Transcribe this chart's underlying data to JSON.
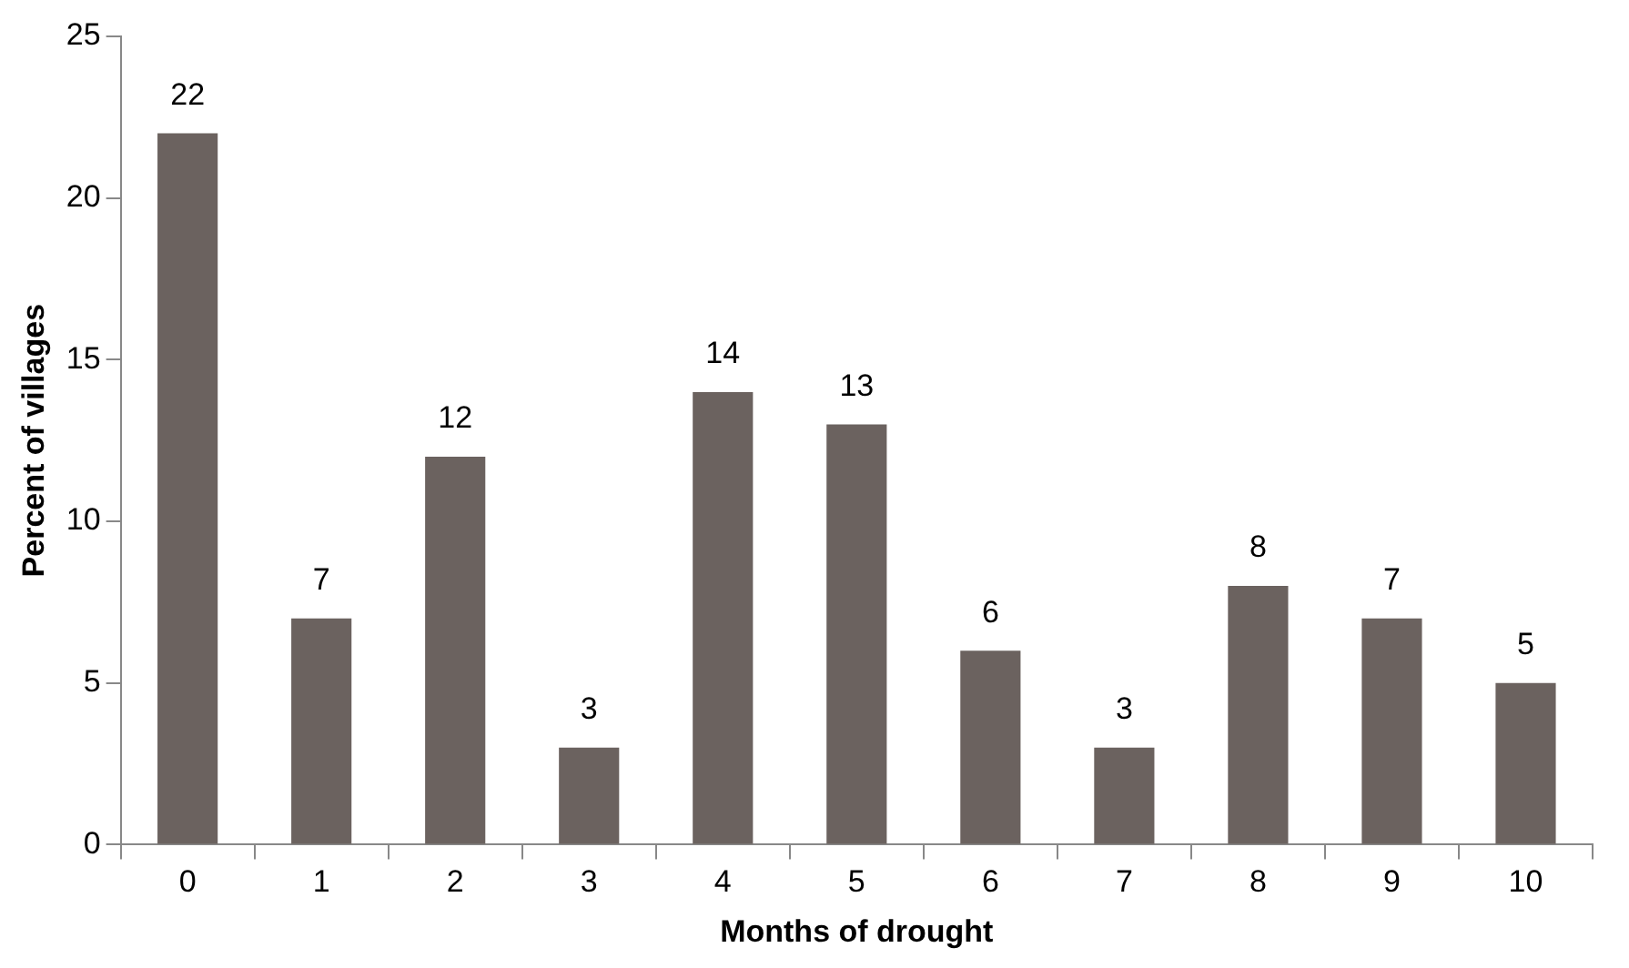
{
  "chart_data": {
    "type": "bar",
    "xlabel": "Months of drought",
    "ylabel": "Percent of villages",
    "categories": [
      "0",
      "1",
      "2",
      "3",
      "4",
      "5",
      "6",
      "7",
      "8",
      "9",
      "10"
    ],
    "values": [
      22,
      7,
      12,
      3,
      14,
      13,
      6,
      3,
      8,
      7,
      5
    ],
    "color": "#6b625f",
    "ylim": [
      0,
      25
    ],
    "yticks": [
      0,
      5,
      10,
      15,
      20,
      25
    ],
    "grid": false,
    "legend": false,
    "data_labels": true
  }
}
